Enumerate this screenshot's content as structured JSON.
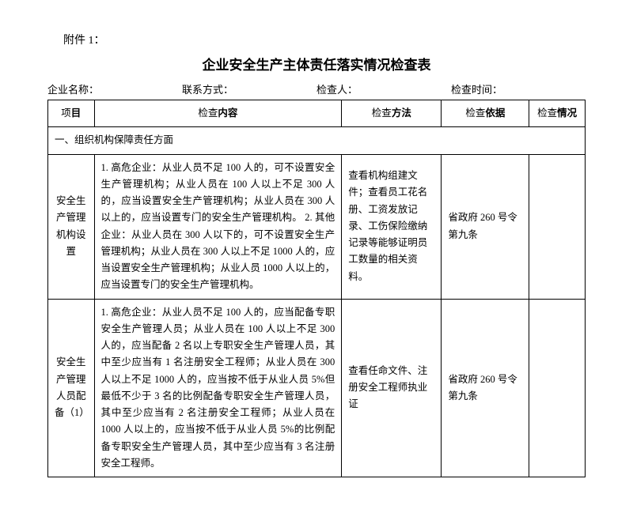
{
  "attachment": "附件 1：",
  "title": "企业安全生产主体责任落实情况检查表",
  "meta": {
    "company_label": "企业名称：",
    "contact_label": "联系方式：",
    "inspector_label": "检查人：",
    "time_label": "检查时间："
  },
  "headers": {
    "item_pre": "项",
    "item_bold": "目",
    "content_pre": "检查",
    "content_bold": "内容",
    "method_pre": "检查",
    "method_bold": "方法",
    "basis_pre": "检查",
    "basis_bold": "依据",
    "status_pre": "检查",
    "status_bold": "情况"
  },
  "section1": "一、组织机构保障责任方面",
  "rows": [
    {
      "item": "安全生产管理机构设置",
      "content": "1. 高危企业：从业人员不足 100 人的，可不设置安全生产管理机构；从业人员在 100 人以上不足 300 人的，应当设置安全生产管理机构；从业人员在 300 人以上的，应当设置专门的安全生产管理机构。\n2. 其他企业：从业人员在 300 人以下的，可不设置安全生产管理机构；从业人员在 300 人以上不足 1000 人的，应当设置安全生产管理机构；从业人员 1000 人以上的，应当设置专门的安全生产管理机构。",
      "method": "查看机构组建文件；查看员工花名册、工资发放记录、工伤保险缴纳记录等能够证明员工数量的相关资料。",
      "basis": "省政府 260 号令第九条",
      "status": ""
    },
    {
      "item": "安全生产管理人员配备（1）",
      "content": "1. 高危企业：从业人员不足 100 人的，应当配备专职安全生产管理人员；从业人员在 100 人以上不足 300 人的，应当配备 2 名以上专职安全生产管理人员，其中至少应当有 1 名注册安全工程师；从业人员在 300 人以上不足 1000 人的，应当按不低于从业人员 5%但最低不少于 3 名的比例配备专职安全生产管理人员，其中至少应当有 2 名注册安全工程师；从业人员在 1000 人以上的，应当按不低于从业人员 5%的比例配备专职安全生产管理人员，其中至少应当有 3 名注册安全工程师。",
      "method": "查看任命文件、注册安全工程师执业证",
      "basis": "省政府 260 号令第九条",
      "status": ""
    }
  ]
}
